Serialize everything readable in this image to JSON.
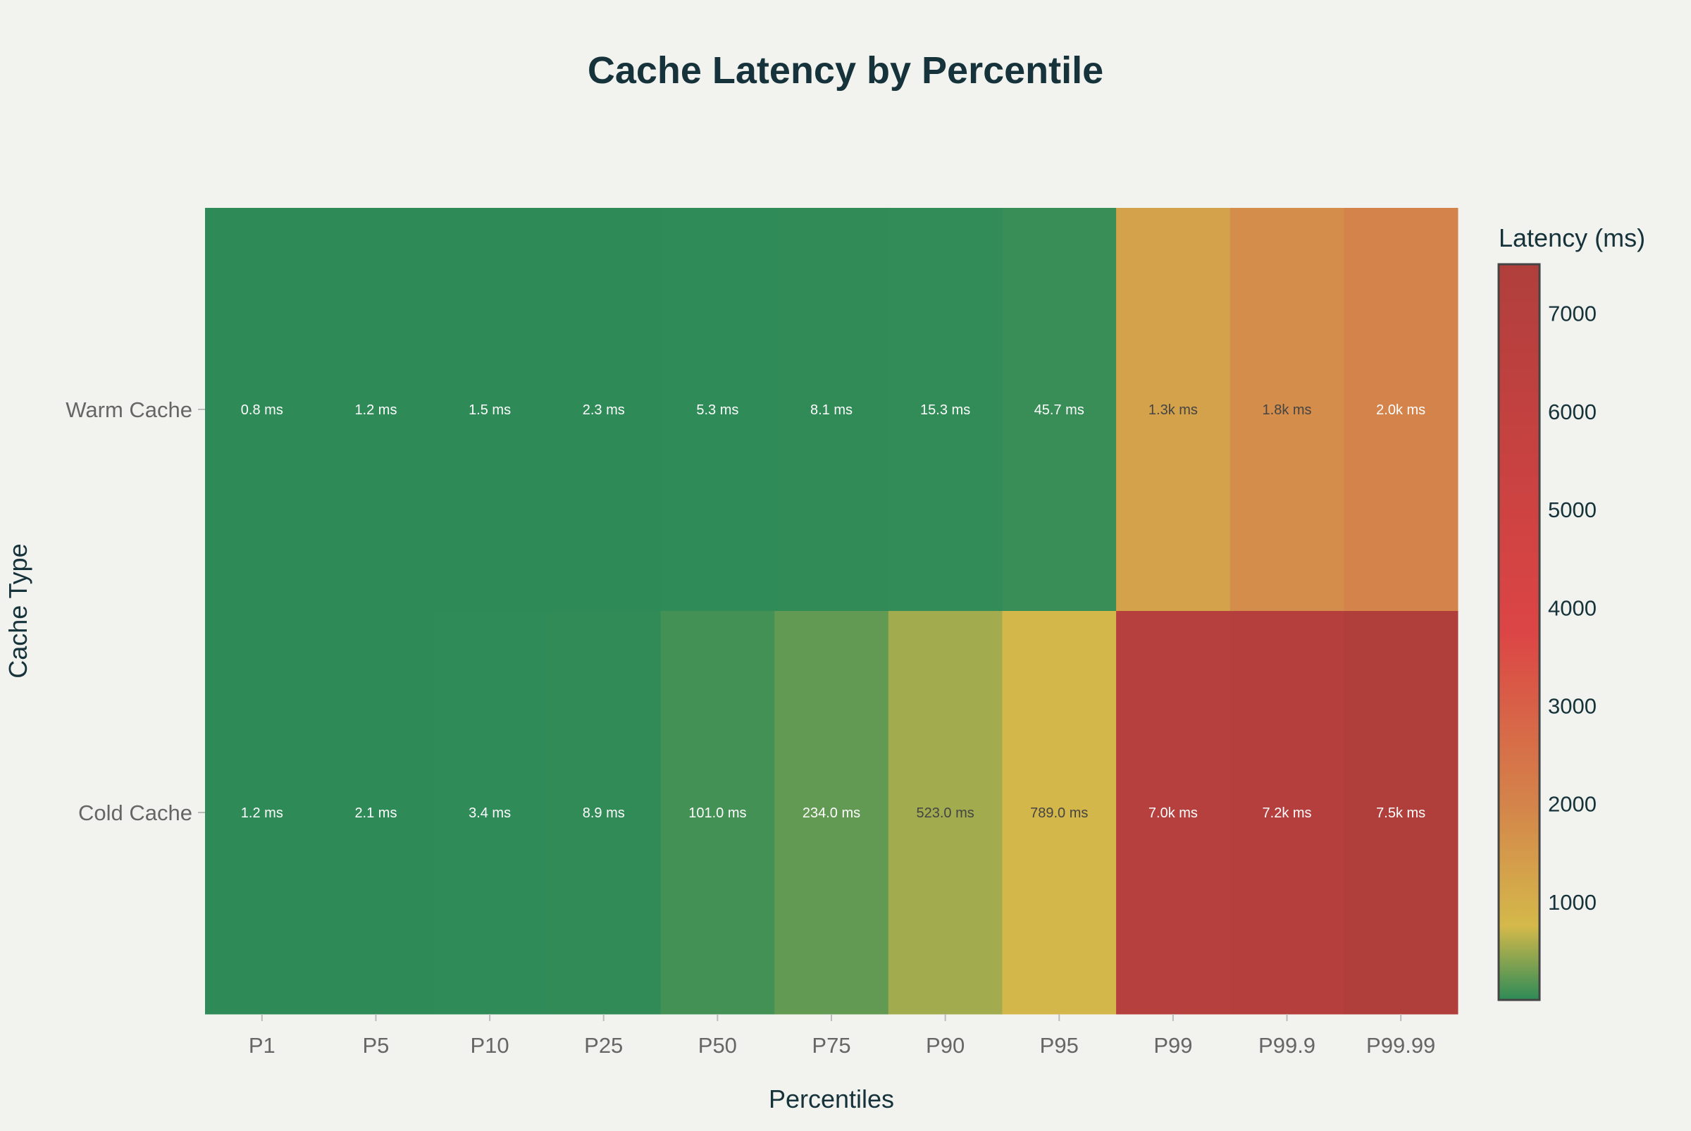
{
  "chart_data": {
    "type": "heatmap",
    "title": "Cache Latency by Percentile",
    "xlabel": "Percentiles",
    "ylabel": "Cache Type",
    "x": [
      "P1",
      "P5",
      "P10",
      "P25",
      "P50",
      "P75",
      "P90",
      "P95",
      "P99",
      "P99.9",
      "P99.99"
    ],
    "y": [
      "Warm Cache",
      "Cold Cache"
    ],
    "z": [
      [
        0.8,
        1.2,
        1.5,
        2.3,
        5.3,
        8.1,
        15.3,
        45.7,
        1300,
        1800,
        2000
      ],
      [
        1.2,
        2.1,
        3.4,
        8.9,
        101.0,
        234.0,
        523.0,
        789.0,
        7000,
        7200,
        7500
      ]
    ],
    "text": [
      [
        "0.8 ms",
        "1.2 ms",
        "1.5 ms",
        "2.3 ms",
        "5.3 ms",
        "8.1 ms",
        "15.3 ms",
        "45.7 ms",
        "1.3k ms",
        "1.8k ms",
        "2.0k ms"
      ],
      [
        "1.2 ms",
        "2.1 ms",
        "3.4 ms",
        "8.9 ms",
        "101.0 ms",
        "234.0 ms",
        "523.0 ms",
        "789.0 ms",
        "7.0k ms",
        "7.2k ms",
        "7.5k ms"
      ]
    ],
    "colorbar": {
      "title": "Latency (ms)",
      "ticks": [
        1000,
        2000,
        3000,
        4000,
        5000,
        6000,
        7000
      ],
      "range": [
        0.8,
        7500
      ]
    },
    "colorscale": [
      [
        0,
        "#2e8b57"
      ],
      [
        0.1,
        "#d4b94a"
      ],
      [
        0.27,
        "#d4834a"
      ],
      [
        0.5,
        "#dc4545"
      ],
      [
        1,
        "#b03f3c"
      ]
    ],
    "colors": {
      "background": "#f2f3ee",
      "title": "#16323a",
      "tick": "#666666"
    }
  }
}
